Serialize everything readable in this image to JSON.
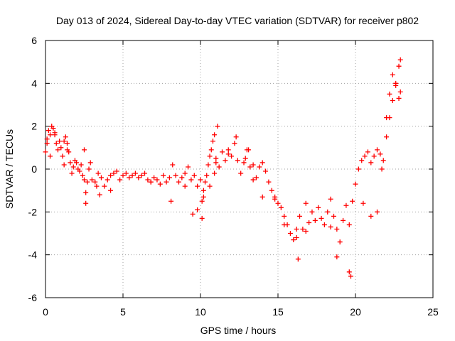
{
  "chart_data": {
    "type": "scatter",
    "title": "Day 013 of 2024, Sidereal Day-to-day VTEC variation (SDTVAR) for receiver p802",
    "xlabel": "GPS time / hours",
    "ylabel": "SDTVAR / TECUs",
    "xlim": [
      0,
      25
    ],
    "ylim": [
      -6,
      6
    ],
    "xticks": [
      0,
      5,
      10,
      15,
      20,
      25
    ],
    "yticks": [
      -6,
      -4,
      -2,
      0,
      2,
      4,
      6
    ],
    "xtick_labels": [
      "0",
      "5",
      "10",
      "15",
      "20",
      "25"
    ],
    "ytick_labels": [
      "-6",
      "-4",
      "-2",
      "0",
      "2",
      "4",
      "6"
    ],
    "grid": true,
    "marker": "plus",
    "series_color": "#ff0000",
    "series": [
      {
        "name": "SDTVAR",
        "x": [
          0.0,
          0.1,
          0.2,
          0.3,
          0.4,
          0.5,
          0.6,
          0.7,
          0.8,
          0.9,
          1.0,
          1.1,
          1.2,
          1.3,
          1.4,
          1.5,
          1.6,
          1.7,
          1.8,
          1.9,
          2.0,
          2.1,
          2.2,
          2.3,
          2.4,
          2.5,
          2.6,
          2.7,
          2.8,
          2.9,
          3.0,
          3.2,
          3.4,
          3.6,
          3.8,
          4.0,
          4.2,
          4.4,
          4.6,
          4.8,
          5.0,
          5.2,
          5.4,
          5.6,
          5.8,
          6.0,
          6.2,
          6.4,
          6.6,
          6.8,
          7.0,
          7.2,
          7.4,
          7.6,
          7.8,
          8.0,
          8.2,
          8.4,
          8.6,
          8.8,
          9.0,
          9.2,
          9.4,
          9.6,
          9.8,
          10.0,
          10.1,
          10.2,
          10.3,
          10.4,
          10.5,
          10.6,
          10.7,
          10.8,
          10.9,
          11.0,
          11.2,
          11.4,
          11.6,
          11.8,
          12.0,
          12.2,
          12.4,
          12.6,
          12.8,
          13.0,
          13.2,
          13.4,
          13.6,
          13.8,
          14.0,
          14.2,
          14.4,
          14.6,
          14.8,
          15.0,
          15.2,
          15.4,
          15.6,
          15.8,
          16.0,
          16.2,
          16.4,
          16.6,
          16.8,
          17.0,
          17.2,
          17.4,
          17.6,
          17.8,
          18.0,
          18.2,
          18.4,
          18.6,
          18.8,
          19.0,
          19.2,
          19.4,
          19.6,
          19.8,
          20.0,
          20.2,
          20.4,
          20.6,
          20.8,
          21.0,
          21.2,
          21.4,
          21.6,
          21.8,
          22.0,
          22.2,
          22.4,
          22.6,
          22.8,
          22.9,
          0.1,
          0.3,
          0.6,
          1.2,
          1.4,
          2.5,
          2.6,
          3.3,
          3.5,
          4.2,
          6.8,
          8.1,
          9.0,
          9.5,
          9.8,
          10.1,
          10.2,
          10.6,
          10.9,
          11.0,
          11.1,
          11.8,
          12.3,
          12.9,
          13.1,
          13.4,
          14.0,
          14.8,
          15.4,
          16.2,
          16.3,
          16.8,
          18.4,
          18.8,
          19.6,
          19.7,
          20.5,
          21.0,
          21.4,
          21.7,
          22.0,
          22.2,
          22.4,
          22.6,
          22.8,
          22.9
        ],
        "y": [
          0.8,
          1.4,
          1.8,
          1.6,
          2.0,
          1.9,
          1.7,
          1.2,
          0.9,
          1.3,
          1.0,
          0.6,
          0.2,
          1.5,
          1.2,
          0.8,
          0.3,
          -0.2,
          0.1,
          0.4,
          0.3,
          0.0,
          -0.1,
          0.2,
          -0.3,
          -0.5,
          -1.1,
          -0.6,
          0.0,
          0.3,
          -0.5,
          -0.6,
          -0.2,
          -0.4,
          -0.8,
          -0.5,
          -0.3,
          -0.2,
          -0.1,
          -0.5,
          -0.3,
          -0.2,
          -0.4,
          -0.3,
          -0.2,
          -0.4,
          -0.3,
          -0.2,
          -0.5,
          -0.6,
          -0.4,
          -0.5,
          -0.7,
          -0.3,
          -0.6,
          -0.4,
          0.2,
          -0.3,
          -0.6,
          -0.4,
          -0.2,
          0.1,
          -0.5,
          -0.3,
          -0.8,
          -0.5,
          -1.5,
          -1.0,
          -0.6,
          -0.3,
          0.2,
          0.6,
          0.9,
          1.3,
          1.6,
          0.5,
          0.1,
          0.8,
          0.4,
          0.9,
          0.6,
          1.2,
          0.4,
          -0.2,
          0.3,
          0.9,
          0.1,
          -0.5,
          -0.4,
          0.1,
          0.3,
          -0.1,
          -0.6,
          -1.0,
          -1.3,
          -1.6,
          -1.8,
          -2.2,
          -2.6,
          -3.0,
          -3.3,
          -2.8,
          -2.2,
          -2.8,
          -1.6,
          -2.5,
          -2.0,
          -2.4,
          -1.8,
          -2.3,
          -2.6,
          -2.0,
          -1.4,
          -2.2,
          -2.8,
          -3.4,
          -2.4,
          -1.7,
          -2.6,
          -1.5,
          -0.7,
          0.0,
          0.4,
          0.6,
          0.8,
          0.3,
          0.6,
          0.9,
          0.7,
          0.4,
          1.5,
          2.4,
          3.2,
          4.0,
          4.8,
          5.1,
          1.2,
          0.6,
          1.6,
          1.3,
          0.9,
          0.9,
          -1.6,
          -0.8,
          -1.2,
          -1.0,
          -0.6,
          -1.5,
          -0.8,
          -2.1,
          -1.9,
          -2.3,
          -1.3,
          -0.8,
          -0.2,
          0.3,
          2.0,
          0.7,
          1.5,
          0.5,
          0.9,
          0.2,
          -1.3,
          -1.4,
          -2.6,
          -3.2,
          -4.2,
          -2.9,
          -2.7,
          -4.1,
          -4.8,
          -5.0,
          -1.6,
          -2.2,
          -2.0,
          0.0,
          2.4,
          3.5,
          4.4,
          3.9,
          3.3,
          3.6
        ]
      }
    ]
  }
}
